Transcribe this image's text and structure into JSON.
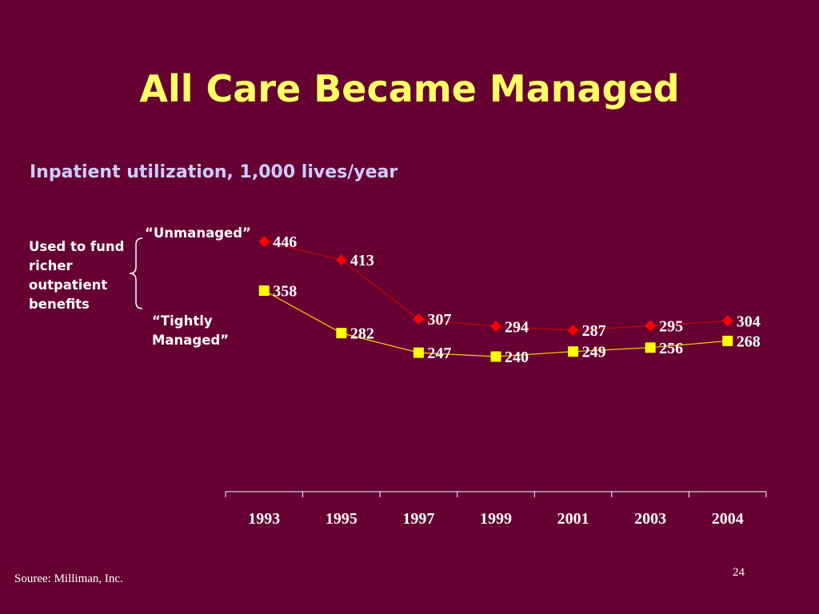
{
  "slide": {
    "title": "All Care Became Managed",
    "subtitle": "Inpatient utilization, 1,000 lives/year",
    "side_note": "Used to fund richer outpatient benefits",
    "source": "Souree:  Milliman, Inc.",
    "page_number": "24"
  },
  "colors": {
    "background": "#660033",
    "title": "#ffff66",
    "subtitle": "#ccccff",
    "unmanaged": "#ff0000",
    "unmanaged_line": "#cc0000",
    "tightly_managed": "#ffff00",
    "tightly_managed_line": "#ffcc00",
    "axis": "#ffffff"
  },
  "chart_data": {
    "type": "line",
    "x": [
      "1993",
      "1995",
      "1997",
      "1999",
      "2001",
      "2003",
      "2004"
    ],
    "series": [
      {
        "name": "“Unmanaged”",
        "marker": "diamond",
        "values": [
          446,
          413,
          307,
          294,
          287,
          295,
          304
        ]
      },
      {
        "name": "“Tightly Managed”",
        "marker": "square",
        "values": [
          358,
          282,
          247,
          240,
          249,
          256,
          268
        ]
      }
    ],
    "ylim": [
      0,
      480
    ],
    "y_axis_visible": false,
    "grid": false,
    "data_labels": true
  }
}
